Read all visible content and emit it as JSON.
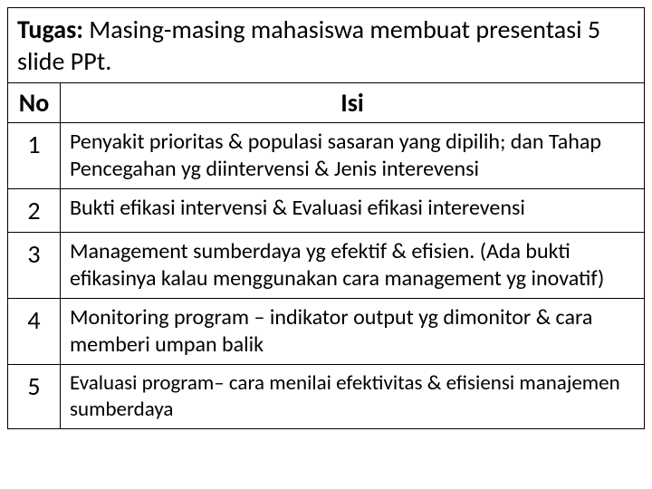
{
  "title": {
    "label": "Tugas:",
    "text": " Masing-masing mahasiswa membuat presentasi 5 slide PPt."
  },
  "headers": {
    "no": "No",
    "isi": "Isi"
  },
  "rows": [
    {
      "no": "1",
      "isi": "Penyakit prioritas & populasi sasaran yang dipilih; dan Tahap Pencegahan yg diintervensi & Jenis interevensi"
    },
    {
      "no": "2",
      "isi": "Bukti efikasi intervensi & Evaluasi efikasi interevensi"
    },
    {
      "no": "3",
      "isi": "Management sumberdaya yg efektif & efisien. (Ada bukti efikasinya kalau menggunakan cara management yg inovatif)"
    },
    {
      "no": "4",
      "isi": "Monitoring program – indikator output yg dimonitor & cara memberi umpan balik"
    },
    {
      "no": "5",
      "isi": "Evaluasi program– cara menilai efektivitas & efisiensi manajemen sumberdaya"
    }
  ]
}
